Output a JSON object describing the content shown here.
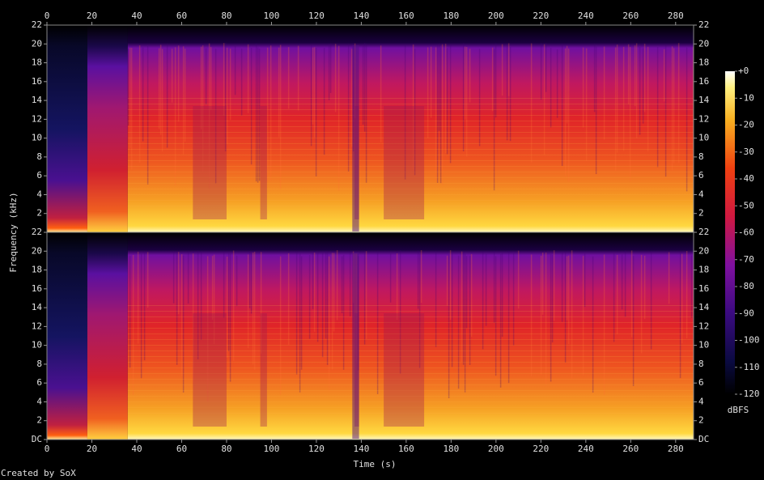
{
  "chart_data": {
    "type": "spectrogram",
    "x_label": "Time (s)",
    "y_label": "Frequency (kHz)",
    "xlim": [
      0,
      288
    ],
    "xticks": [
      0,
      20,
      40,
      60,
      80,
      100,
      120,
      140,
      160,
      180,
      200,
      220,
      240,
      260,
      280
    ],
    "channels": [
      {
        "ylim": [
          0,
          22
        ],
        "yticks": [
          2,
          4,
          6,
          8,
          10,
          12,
          14,
          16,
          18,
          20,
          22
        ]
      },
      {
        "ylim": [
          0,
          22
        ],
        "yticks": [
          {
            "value": 0,
            "label": "DC"
          },
          2,
          4,
          6,
          8,
          10,
          12,
          14,
          16,
          18,
          20,
          22
        ]
      }
    ],
    "colorbar": {
      "label": "dBFS",
      "lim": [
        -120,
        0
      ],
      "ticks": [
        {
          "value": 0,
          "label": "+0"
        },
        -10,
        -20,
        -30,
        -40,
        -50,
        -60,
        -70,
        -80,
        -90,
        -100,
        -110,
        -120
      ]
    },
    "footer": "Created by SoX"
  }
}
